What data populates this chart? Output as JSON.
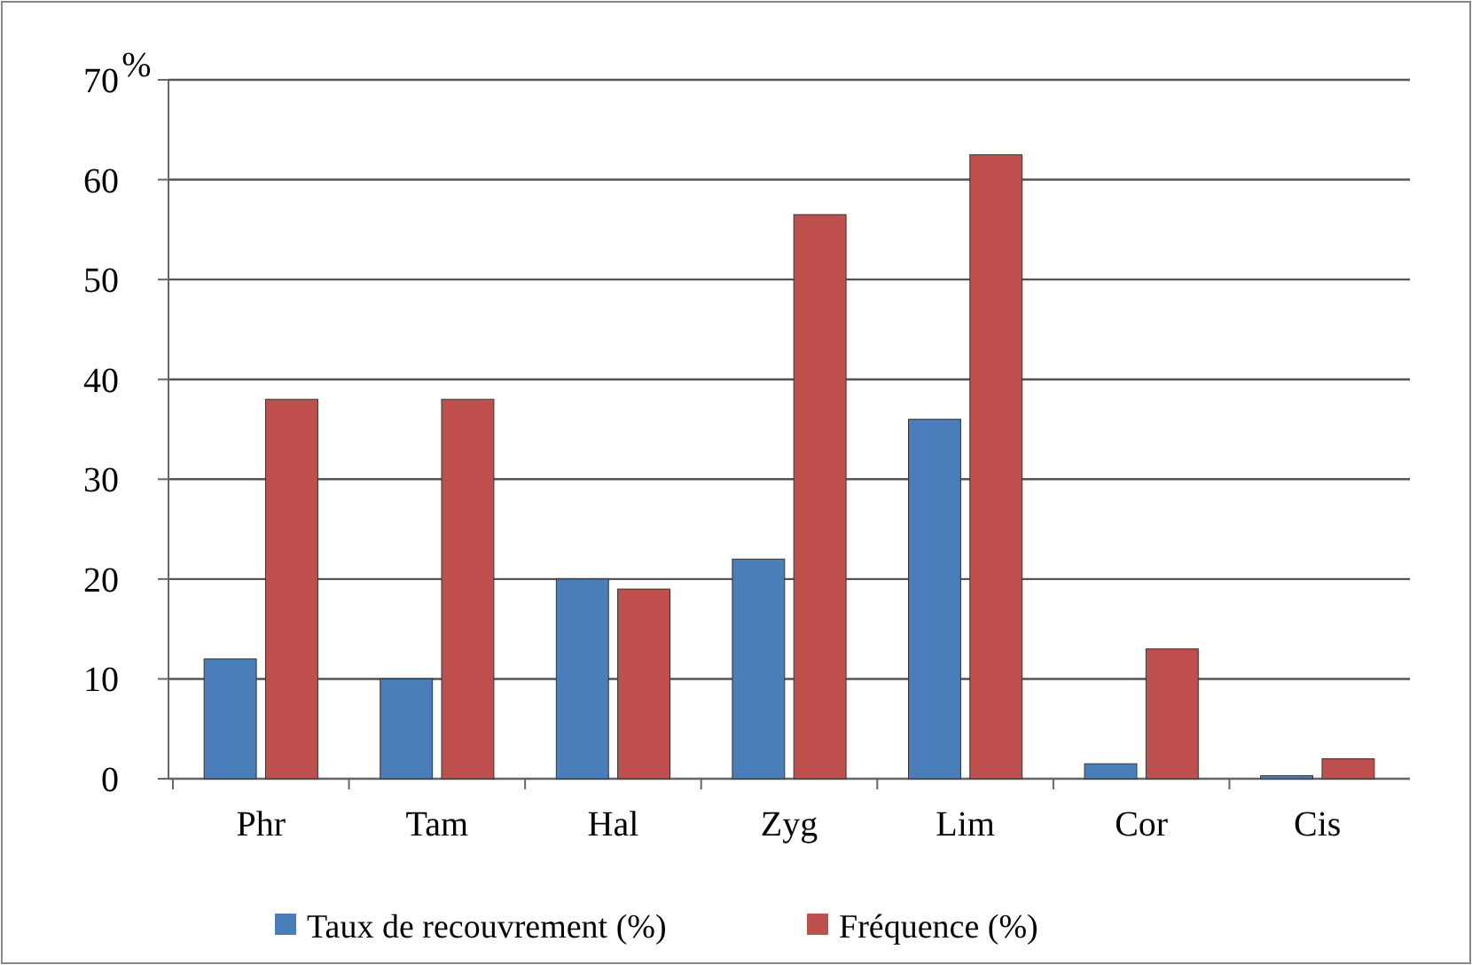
{
  "chart_data": {
    "type": "bar",
    "ylabel": "%",
    "categories": [
      "Phr",
      "Tam",
      "Hal",
      "Zyg",
      "Lim",
      "Cor",
      "Cis"
    ],
    "series": [
      {
        "name": "Taux de recouvrement (%)",
        "color": "#4a7ebb",
        "values": [
          12,
          10,
          20,
          22,
          36,
          1.5,
          0.3
        ]
      },
      {
        "name": "Fréquence (%)",
        "color": "#c0504d",
        "values": [
          38,
          38,
          19,
          56.5,
          62.5,
          13,
          2
        ]
      }
    ],
    "ylim": [
      0,
      70
    ],
    "yticks": [
      0,
      10,
      20,
      30,
      40,
      50,
      60,
      70
    ],
    "grid": "y",
    "legend": "bottom"
  }
}
